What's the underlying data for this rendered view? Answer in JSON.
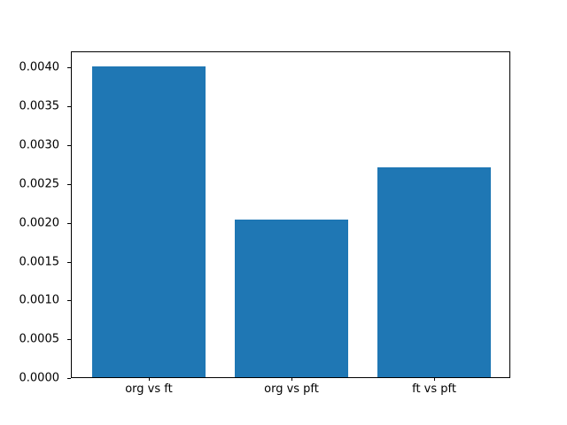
{
  "chart_data": {
    "type": "bar",
    "categories": [
      "org vs ft",
      "org vs pft",
      "ft vs pft"
    ],
    "values": [
      0.00401,
      0.00203,
      0.0027
    ],
    "title": "",
    "xlabel": "",
    "ylabel": "",
    "bar_color": "#1f77b4",
    "background_color": "#ffffff",
    "ylim": [
      0,
      0.004211
    ],
    "xlim": [
      -0.54,
      2.54
    ],
    "bar_width": 0.8,
    "grid": false,
    "legend": null,
    "yticks": [
      {
        "value": 0.0,
        "label": "0.0000"
      },
      {
        "value": 0.0005,
        "label": "0.0005"
      },
      {
        "value": 0.001,
        "label": "0.0010"
      },
      {
        "value": 0.0015,
        "label": "0.0015"
      },
      {
        "value": 0.002,
        "label": "0.0020"
      },
      {
        "value": 0.0025,
        "label": "0.0025"
      },
      {
        "value": 0.003,
        "label": "0.0030"
      },
      {
        "value": 0.0035,
        "label": "0.0035"
      },
      {
        "value": 0.004,
        "label": "0.0040"
      }
    ]
  }
}
